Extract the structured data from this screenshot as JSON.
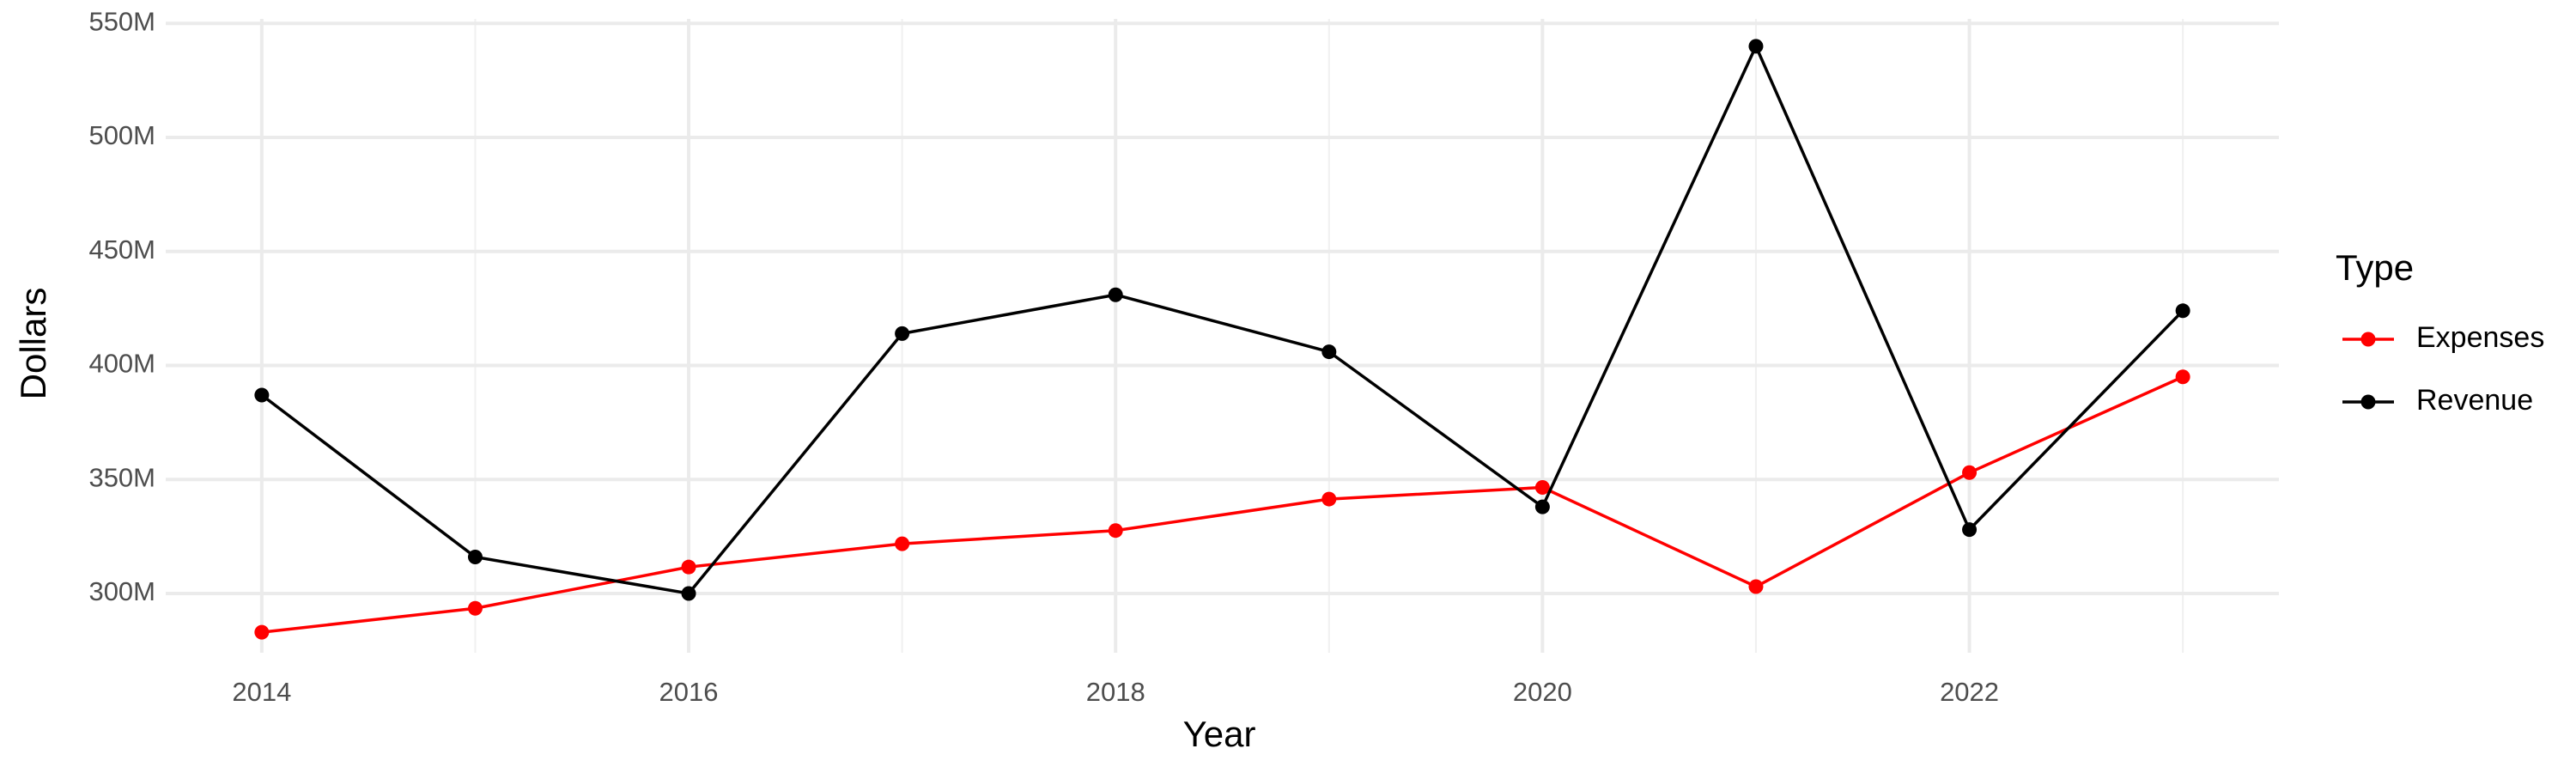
{
  "chart_data": {
    "type": "line",
    "x_label": "Year",
    "y_label": "Dollars",
    "x": [
      2014,
      2015,
      2016,
      2017,
      2018,
      2019,
      2020,
      2021,
      2022,
      2023
    ],
    "series": [
      {
        "name": "Expenses",
        "color": "#ff0000",
        "values": [
          283000000,
          293500000,
          311600000,
          321800000,
          327600000,
          341400000,
          346500000,
          303000000,
          353000000,
          395000000
        ]
      },
      {
        "name": "Revenue",
        "color": "#000000",
        "values": [
          387000000,
          316000000,
          300000000,
          414000000,
          431000000,
          406000000,
          338000000,
          540000000,
          328000000,
          424000000
        ]
      }
    ],
    "xlim": [
      2013.55,
      2023.45
    ],
    "xticks": [
      2014,
      2016,
      2018,
      2020,
      2022
    ],
    "ylim": [
      274000000,
      552000000
    ],
    "yticks": [
      {
        "value": 300000000,
        "label": "300M"
      },
      {
        "value": 350000000,
        "label": "350M"
      },
      {
        "value": 400000000,
        "label": "400M"
      },
      {
        "value": 450000000,
        "label": "450M"
      },
      {
        "value": 500000000,
        "label": "500M"
      },
      {
        "value": 550000000,
        "label": "550M"
      }
    ],
    "legend_title": "Type",
    "legend_position": "right",
    "grid": true
  }
}
